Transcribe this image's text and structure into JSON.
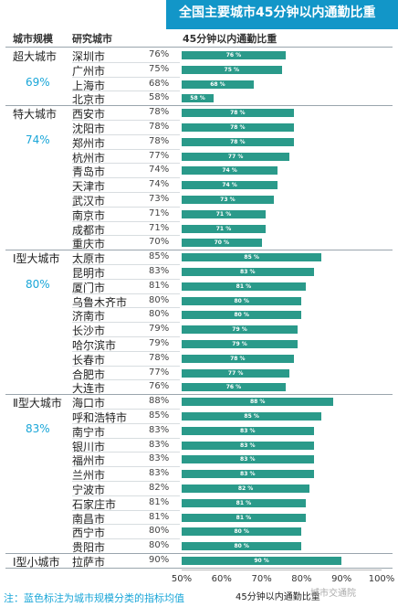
{
  "title": "全国主要城市45分钟以内通勤比重",
  "headers": {
    "tier": "城市规模",
    "city": "研究城市",
    "metric": "45分钟以内通勤比重"
  },
  "note": "注：蓝色标注为城市规模分类的指标均值",
  "watermark": "城市交通院",
  "chart_data": {
    "type": "bar",
    "orientation": "horizontal",
    "title": "全国主要城市45分钟以内通勤比重",
    "xlabel": "45分钟以内通勤比重",
    "xlim": [
      50,
      100
    ],
    "xticks": [
      "50%",
      "60%",
      "70%",
      "80%",
      "90%",
      "100%"
    ],
    "bar_color": "#2a9a8a",
    "groups": [
      {
        "name": "超大城市",
        "average": "69%",
        "cities": [
          {
            "name": "深圳市",
            "value": 76
          },
          {
            "name": "广州市",
            "value": 75
          },
          {
            "name": "上海市",
            "value": 68
          },
          {
            "name": "北京市",
            "value": 58
          }
        ]
      },
      {
        "name": "特大城市",
        "average": "74%",
        "cities": [
          {
            "name": "西安市",
            "value": 78
          },
          {
            "name": "沈阳市",
            "value": 78
          },
          {
            "name": "郑州市",
            "value": 78
          },
          {
            "name": "杭州市",
            "value": 77
          },
          {
            "name": "青岛市",
            "value": 74
          },
          {
            "name": "天津市",
            "value": 74
          },
          {
            "name": "武汉市",
            "value": 73
          },
          {
            "name": "南京市",
            "value": 71
          },
          {
            "name": "成都市",
            "value": 71
          },
          {
            "name": "重庆市",
            "value": 70
          }
        ]
      },
      {
        "name": "Ⅰ型大城市",
        "average": "80%",
        "cities": [
          {
            "name": "太原市",
            "value": 85
          },
          {
            "name": "昆明市",
            "value": 83
          },
          {
            "name": "厦门市",
            "value": 81
          },
          {
            "name": "乌鲁木齐市",
            "value": 80
          },
          {
            "name": "济南市",
            "value": 80
          },
          {
            "name": "长沙市",
            "value": 79
          },
          {
            "name": "哈尔滨市",
            "value": 79
          },
          {
            "name": "长春市",
            "value": 78
          },
          {
            "name": "合肥市",
            "value": 77
          },
          {
            "name": "大连市",
            "value": 76
          }
        ]
      },
      {
        "name": "Ⅱ型大城市",
        "average": "83%",
        "cities": [
          {
            "name": "海口市",
            "value": 88
          },
          {
            "name": "呼和浩特市",
            "value": 85
          },
          {
            "name": "南宁市",
            "value": 83
          },
          {
            "name": "银川市",
            "value": 83
          },
          {
            "name": "福州市",
            "value": 83
          },
          {
            "name": "兰州市",
            "value": 83
          },
          {
            "name": "宁波市",
            "value": 82
          },
          {
            "name": "石家庄市",
            "value": 81
          },
          {
            "name": "南昌市",
            "value": 81
          },
          {
            "name": "西宁市",
            "value": 80
          },
          {
            "name": "贵阳市",
            "value": 80
          }
        ]
      },
      {
        "name": "Ⅰ型小城市",
        "average": "",
        "cities": [
          {
            "name": "拉萨市",
            "value": 90
          }
        ]
      }
    ]
  }
}
